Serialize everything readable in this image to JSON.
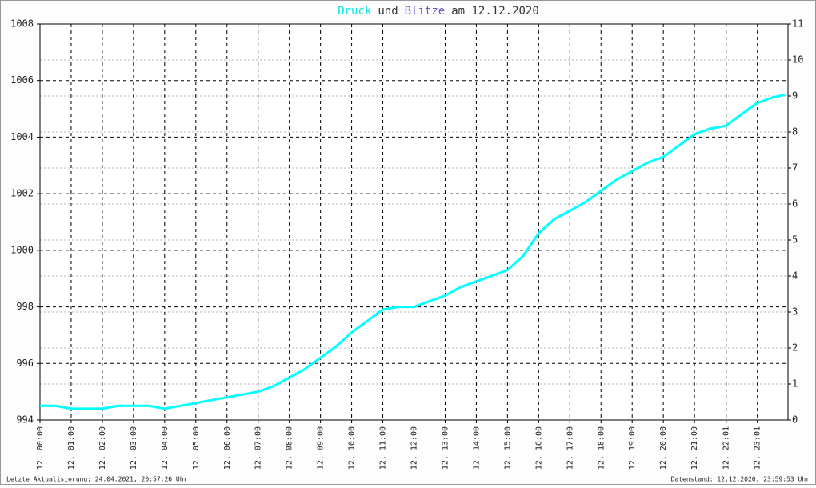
{
  "chart_data": {
    "type": "line",
    "title": [
      {
        "text": "Druck",
        "color": "#00e5e5"
      },
      {
        "text": "und",
        "color": "#333333"
      },
      {
        "text": "Blitze",
        "color": "#6a5acd"
      },
      {
        "text": "am 12.12.2020",
        "color": "#333333"
      }
    ],
    "x": [
      0,
      0.5,
      1,
      1.5,
      2,
      2.5,
      3,
      3.5,
      4,
      4.5,
      5,
      5.5,
      6,
      6.5,
      7,
      7.5,
      8,
      8.5,
      9,
      9.5,
      10,
      10.5,
      11,
      11.5,
      12,
      12.5,
      13,
      13.5,
      14,
      14.5,
      15,
      15.5,
      16,
      16.5,
      17,
      17.5,
      18,
      18.5,
      19,
      19.5,
      20,
      20.5,
      21,
      21.5,
      22,
      22.5,
      23,
      23.5,
      23.9
    ],
    "series": [
      {
        "name": "Druck",
        "color": "#00ffff",
        "values": [
          994.5,
          994.5,
          994.4,
          994.4,
          994.4,
          994.5,
          994.5,
          994.5,
          994.4,
          994.5,
          994.6,
          994.7,
          994.8,
          994.9,
          995.0,
          995.2,
          995.5,
          995.8,
          996.2,
          996.6,
          997.1,
          997.5,
          997.9,
          998.0,
          998.0,
          998.2,
          998.4,
          998.7,
          998.9,
          999.1,
          999.3,
          999.8,
          1000.6,
          1001.1,
          1001.4,
          1001.7,
          1002.1,
          1002.5,
          1002.8,
          1003.1,
          1003.3,
          1003.7,
          1004.1,
          1004.3,
          1004.4,
          1004.8,
          1005.2,
          1005.4,
          1005.5
        ]
      }
    ],
    "xlim": [
      0,
      24
    ],
    "xticks": [
      {
        "value": 0,
        "label": "12. 00:00"
      },
      {
        "value": 1,
        "label": "12. 01:00"
      },
      {
        "value": 2,
        "label": "12. 02:00"
      },
      {
        "value": 3,
        "label": "12. 03:00"
      },
      {
        "value": 4,
        "label": "12. 04:00"
      },
      {
        "value": 5,
        "label": "12. 05:00"
      },
      {
        "value": 6,
        "label": "12. 06:00"
      },
      {
        "value": 7,
        "label": "12. 07:00"
      },
      {
        "value": 8,
        "label": "12. 08:00"
      },
      {
        "value": 9,
        "label": "12. 09:00"
      },
      {
        "value": 10,
        "label": "12. 10:00"
      },
      {
        "value": 11,
        "label": "12. 11:00"
      },
      {
        "value": 12,
        "label": "12. 12:00"
      },
      {
        "value": 13,
        "label": "12. 13:00"
      },
      {
        "value": 14,
        "label": "12. 14:00"
      },
      {
        "value": 15,
        "label": "12. 15:00"
      },
      {
        "value": 16,
        "label": "12. 16:00"
      },
      {
        "value": 17,
        "label": "12. 17:00"
      },
      {
        "value": 18,
        "label": "12. 18:00"
      },
      {
        "value": 19,
        "label": "12. 19:00"
      },
      {
        "value": 20,
        "label": "12. 20:00"
      },
      {
        "value": 21,
        "label": "12. 21:00"
      },
      {
        "value": 22.017,
        "label": "12. 22:01"
      },
      {
        "value": 23.017,
        "label": "12. 23:01"
      }
    ],
    "ylim": [
      994,
      1008
    ],
    "yticks": [
      994,
      996,
      998,
      1000,
      1002,
      1004,
      1006,
      1008
    ],
    "y2lim": [
      0,
      11
    ],
    "y2ticks": [
      0,
      1,
      2,
      3,
      4,
      5,
      6,
      7,
      8,
      9,
      10,
      11
    ],
    "grid": true,
    "footer_left": "Letzte Aktualisierung: 24.04.2021, 20:57:26 Uhr",
    "footer_right": "Datenstand: 12.12.2020, 23:59:53 Uhr"
  }
}
